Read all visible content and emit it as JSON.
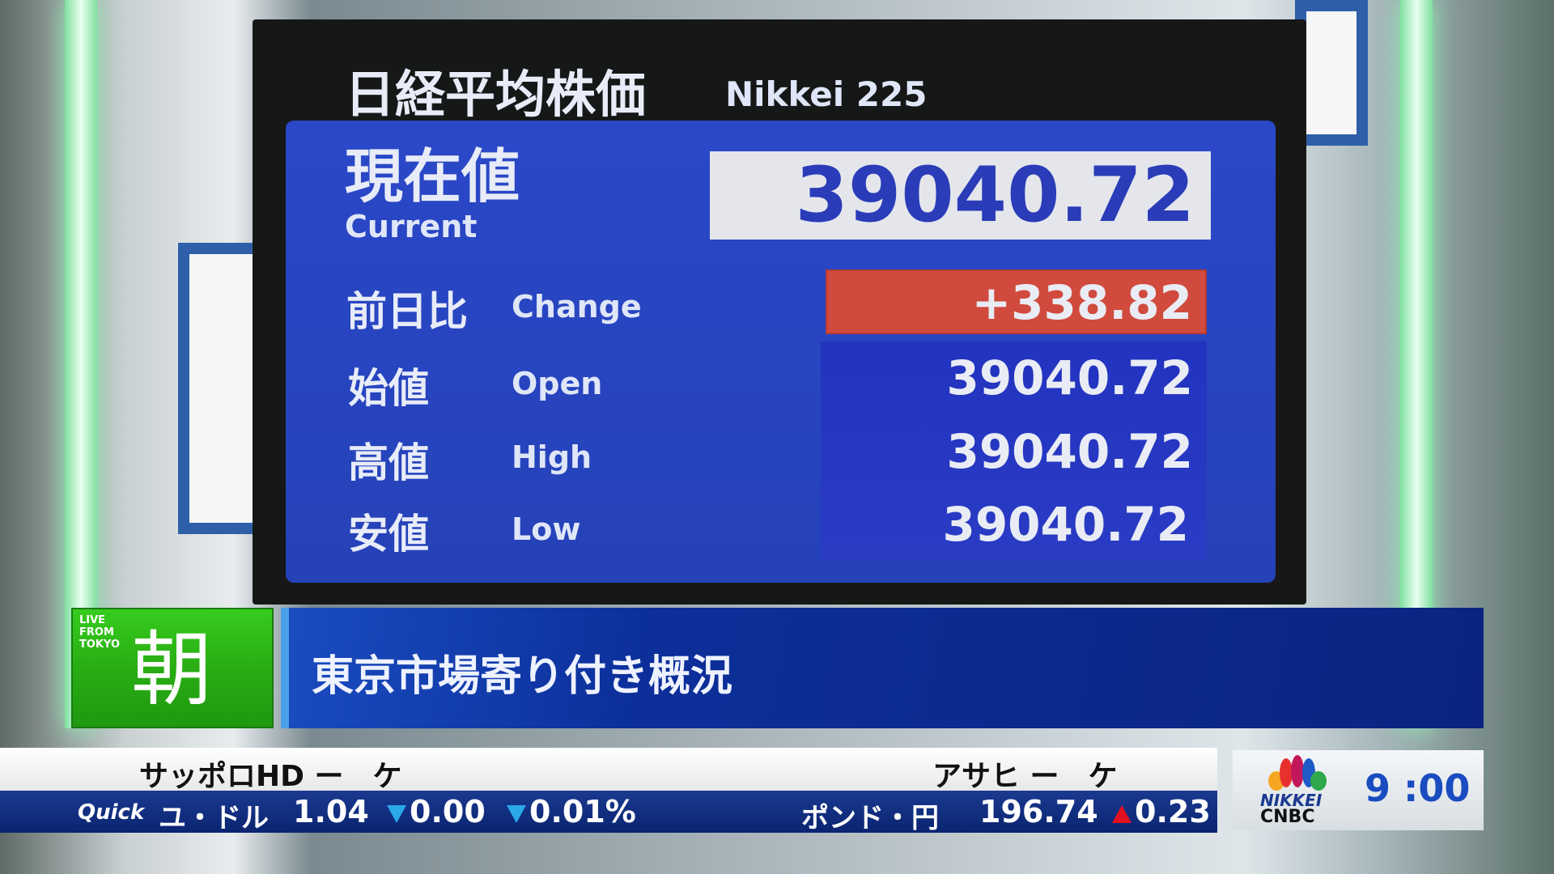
{
  "board": {
    "title_jp": "日経平均株価",
    "title_en": "Nikkei 225",
    "current": {
      "label_jp": "現在値",
      "label_en": "Current",
      "value": "39040.72"
    },
    "rows": [
      {
        "label_jp": "前日比",
        "label_en": "Change",
        "value": "+338.82"
      },
      {
        "label_jp": "始値",
        "label_en": "Open",
        "value": "39040.72"
      },
      {
        "label_jp": "高値",
        "label_en": "High",
        "value": "39040.72"
      },
      {
        "label_jp": "安値",
        "label_en": "Low",
        "value": "39040.72"
      }
    ]
  },
  "lower_third": {
    "badge_small": [
      "LIVE",
      "FROM",
      "TOKYO"
    ],
    "badge_kanji": "朝",
    "headline": "東京市場寄り付き概況"
  },
  "ticker": {
    "top_left": "サッポロHD ー　ケ",
    "top_right": "アサヒ ー　ケ",
    "source": "Quick",
    "pair1": "ユ・ドル",
    "pair1_value": "1.04",
    "pair1_change": "0.00",
    "pair1_pct": "0.01%",
    "pair2": "ポンド・円",
    "pair2_value": "196.74",
    "pair2_change": "0.23"
  },
  "logo": {
    "line1": "NIKKEI",
    "line2": "CNBC"
  },
  "clock": "9 :00",
  "colors": {
    "down": "#2aa8e8",
    "up": "#e01020",
    "change_bg": "#d14a3e",
    "panel": "#2a48c8"
  }
}
